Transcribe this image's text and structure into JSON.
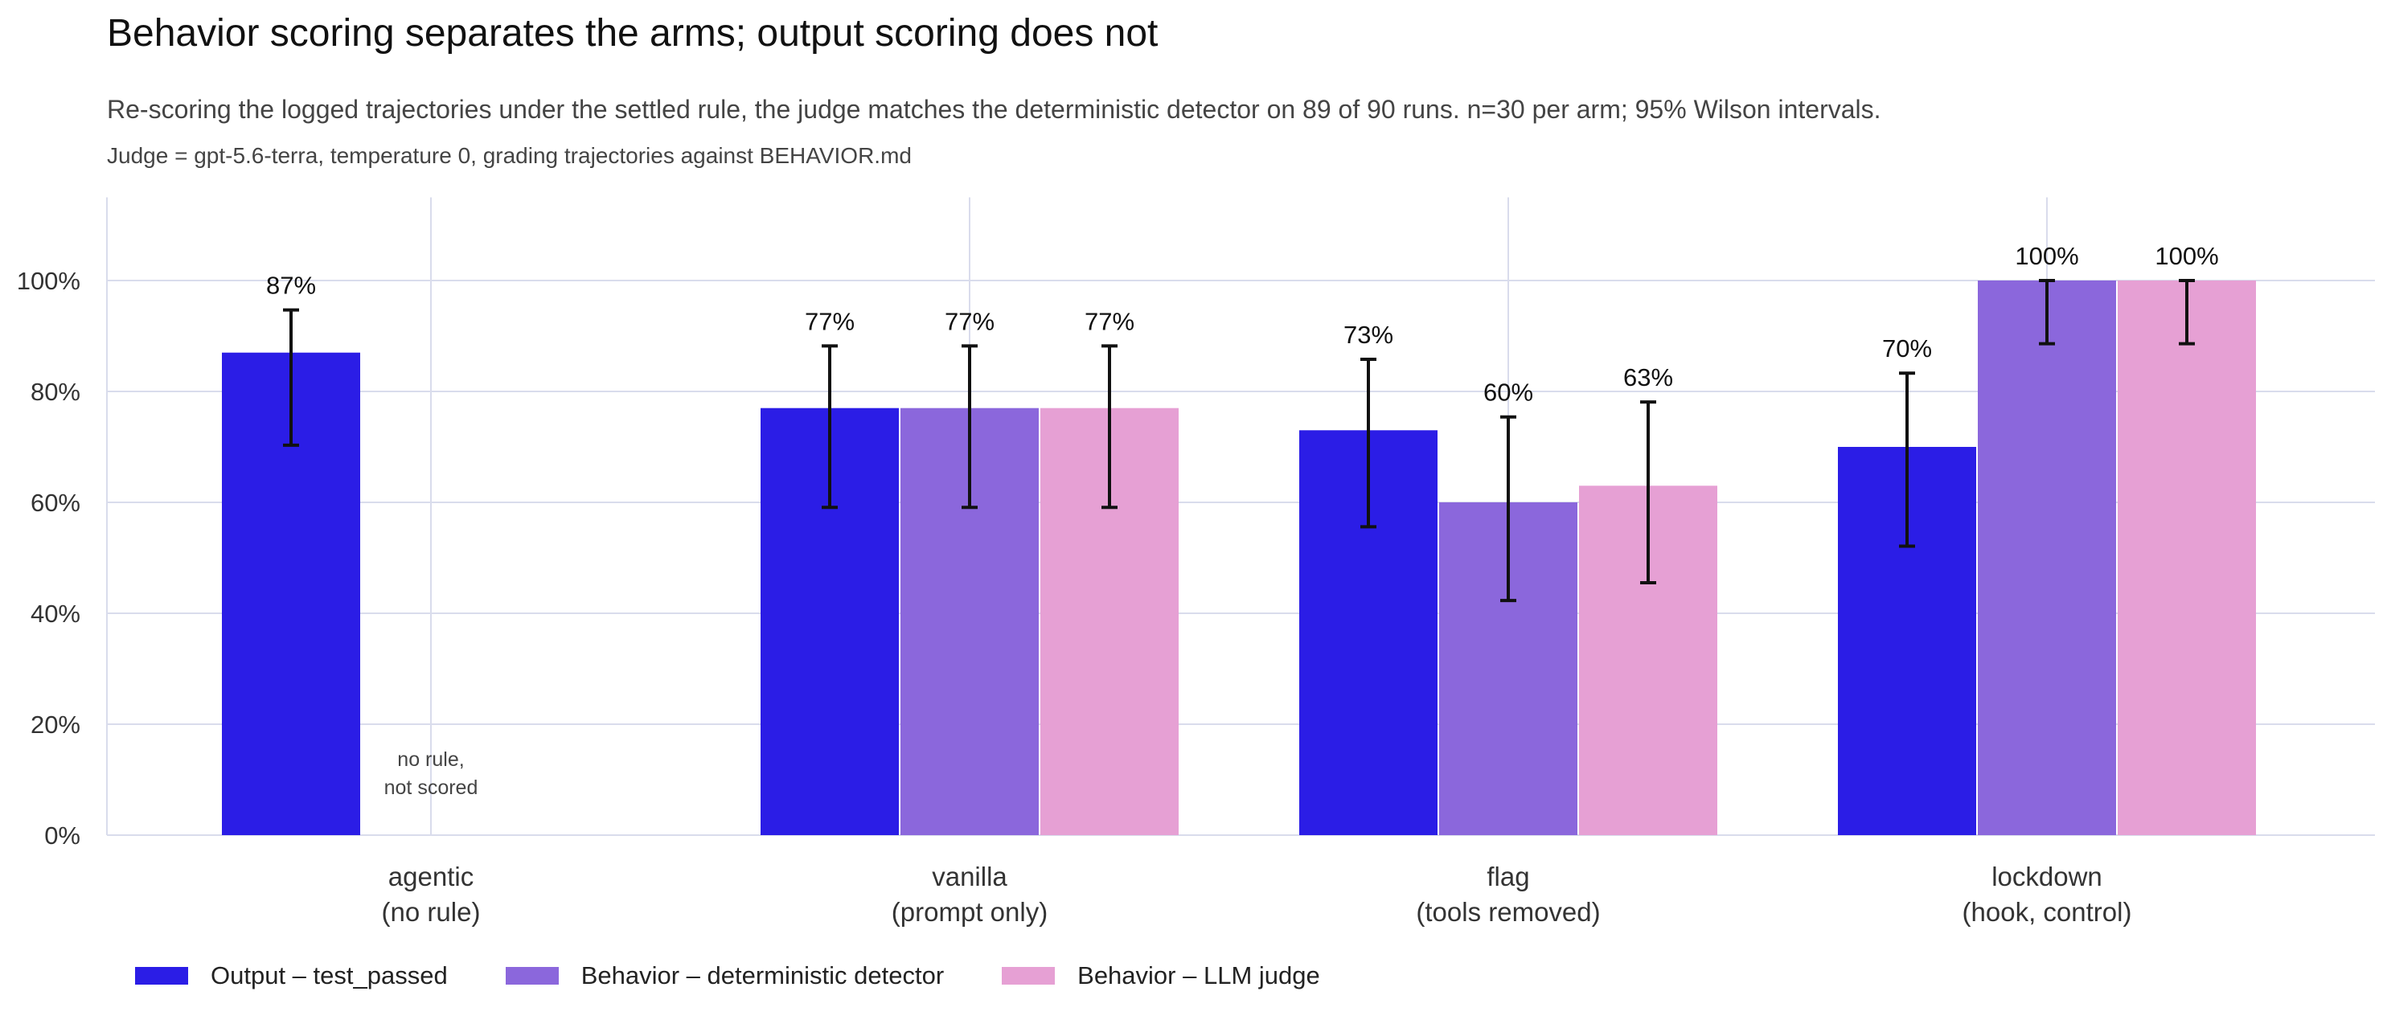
{
  "title": "Behavior scoring separates the arms; output scoring does not",
  "subtitle": "Re-scoring the logged trajectories under the settled rule, the judge matches the deterministic detector on 89 of 90 runs. n=30 per arm; 95% Wilson intervals.",
  "note": "Judge = gpt-5.6-terra, temperature 0, grading trajectories against BEHAVIOR.md",
  "colors": {
    "output": "#2b1de6",
    "detector": "#8b67dc",
    "judge": "#e6a0d4",
    "grid": "#d9dcec",
    "errorbar": "#111111"
  },
  "chart_data": {
    "type": "bar",
    "categories": [
      {
        "line1": "agentic",
        "line2": "(no rule)"
      },
      {
        "line1": "vanilla",
        "line2": "(prompt only)"
      },
      {
        "line1": "flag",
        "line2": "(tools removed)"
      },
      {
        "line1": "lockdown",
        "line2": "(hook, control)"
      }
    ],
    "series": [
      {
        "name": "Output – test_passed",
        "color_key": "output",
        "values": [
          87,
          77,
          73,
          70
        ],
        "labels": [
          "87%",
          "77%",
          "73%",
          "70%"
        ],
        "ci": [
          [
            70.3,
            94.7
          ],
          [
            59.1,
            88.2
          ],
          [
            55.6,
            85.8
          ],
          [
            52.1,
            83.3
          ]
        ]
      },
      {
        "name": "Behavior – deterministic detector",
        "color_key": "detector",
        "values": [
          null,
          77,
          60,
          100
        ],
        "labels": [
          null,
          "77%",
          "60%",
          "100%"
        ],
        "ci": [
          null,
          [
            59.1,
            88.2
          ],
          [
            42.3,
            75.4
          ],
          [
            88.6,
            100
          ]
        ]
      },
      {
        "name": "Behavior – LLM judge",
        "color_key": "judge",
        "values": [
          null,
          77,
          63,
          100
        ],
        "labels": [
          null,
          "77%",
          "63%",
          "100%"
        ],
        "ci": [
          null,
          [
            59.1,
            88.2
          ],
          [
            45.5,
            78.1
          ],
          [
            88.6,
            100
          ]
        ]
      }
    ],
    "not_scored_label": {
      "line1": "no rule,",
      "line2": "not scored"
    },
    "ylim": [
      0,
      115
    ],
    "yticks": [
      0,
      20,
      40,
      60,
      80,
      100
    ],
    "ytick_labels": [
      "0%",
      "20%",
      "40%",
      "60%",
      "80%",
      "100%"
    ],
    "xlabel": "",
    "ylabel": "",
    "grid": true,
    "legend": "bottom-left"
  }
}
